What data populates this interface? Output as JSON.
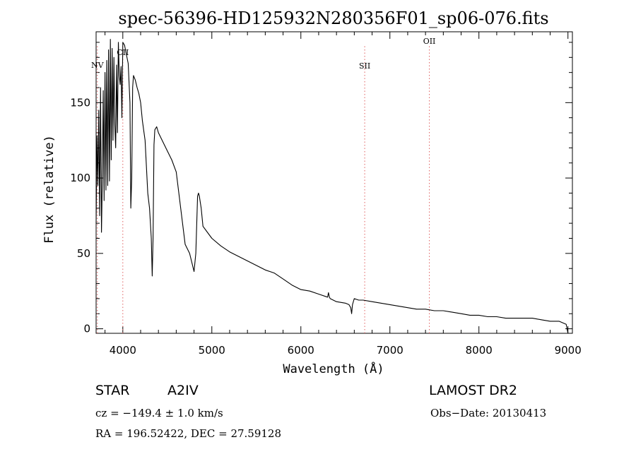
{
  "header": {
    "title": "spec-56396-HD125932N280356F01_sp06-076.fits"
  },
  "chart_data": {
    "type": "line",
    "title": "spec-56396-HD125932N280356F01_sp06-076.fits",
    "xlabel": "Wavelength (Å)",
    "ylabel": "Flux (relative)",
    "xlim": [
      3700,
      9050
    ],
    "ylim": [
      -3,
      197
    ],
    "x_ticks": [
      4000,
      5000,
      6000,
      7000,
      8000,
      9000
    ],
    "y_ticks": [
      0,
      50,
      100,
      150
    ],
    "x_tick_labels": [
      "4000",
      "5000",
      "6000",
      "7000",
      "8000",
      "9000"
    ],
    "y_tick_labels": [
      "0",
      "50",
      "100",
      "150"
    ],
    "grid": false,
    "series": [
      {
        "x": [
          3700,
          3710,
          3720,
          3730,
          3740,
          3750,
          3760,
          3770,
          3780,
          3790,
          3800,
          3810,
          3820,
          3830,
          3840,
          3850,
          3860,
          3870,
          3880,
          3890,
          3900,
          3910,
          3920,
          3930,
          3940,
          3950,
          3960,
          3970,
          3980,
          3990,
          4000,
          4020,
          4040,
          4060,
          4080,
          4090,
          4100,
          4110,
          4120,
          4140,
          4160,
          4180,
          4200,
          4220,
          4250,
          4280,
          4300,
          4320,
          4330,
          4340,
          4350,
          4360,
          4380,
          4400,
          4450,
          4500,
          4550,
          4600,
          4650,
          4700,
          4750,
          4800,
          4820,
          4840,
          4850,
          4860,
          4870,
          4880,
          4900,
          4950,
          5000,
          5100,
          5200,
          5300,
          5400,
          5500,
          5600,
          5700,
          5800,
          5900,
          6000,
          6100,
          6200,
          6300,
          6310,
          6320,
          6330,
          6400,
          6500,
          6540,
          6560,
          6570,
          6580,
          6600,
          6650,
          6700,
          6800,
          6900,
          7000,
          7100,
          7200,
          7300,
          7400,
          7500,
          7600,
          7700,
          7800,
          7900,
          8000,
          8100,
          8200,
          8300,
          8400,
          8500,
          8600,
          8700,
          8800,
          8900,
          8980,
          9000
        ],
        "y": [
          70,
          128,
          95,
          145,
          75,
          160,
          64,
          100,
          158,
          85,
          170,
          92,
          178,
          95,
          185,
          98,
          192,
          112,
          186,
          125,
          180,
          135,
          120,
          175,
          130,
          190,
          168,
          162,
          174,
          140,
          190,
          188,
          182,
          176,
          150,
          80,
          100,
          160,
          168,
          165,
          160,
          156,
          150,
          138,
          125,
          90,
          80,
          60,
          35,
          60,
          122,
          132,
          134,
          130,
          124,
          118,
          112,
          104,
          80,
          56,
          50,
          38,
          50,
          88,
          90,
          88,
          84,
          80,
          68,
          64,
          60,
          55,
          51,
          48,
          45,
          42,
          39,
          37,
          33,
          29,
          26,
          25,
          23,
          21,
          24,
          21,
          20,
          18,
          17,
          16,
          14,
          10,
          16,
          20,
          19,
          19,
          18,
          17,
          16,
          15,
          14,
          13,
          13,
          12,
          12,
          11,
          10,
          9,
          9,
          8,
          8,
          7,
          7,
          7,
          7,
          6,
          5,
          5,
          3,
          -3
        ]
      }
    ],
    "line_markers": [
      {
        "label": "NV",
        "wavelength": 3714
      },
      {
        "label": "CII",
        "wavelength": 4000
      },
      {
        "label": "SII",
        "wavelength": 6717
      },
      {
        "label": "OII",
        "wavelength": 7443
      }
    ]
  },
  "info": {
    "object_class": "STAR",
    "subclass": "A2IV",
    "cz": "cz = −149.4 ± 1.0 km/s",
    "coords": "RA = 196.52422, DEC =  27.59128",
    "survey": "LAMOST DR2",
    "obs_date": "Obs−Date: 20130413"
  },
  "colors": {
    "line_marker": "#e06060",
    "spectrum": "#000000",
    "axis": "#000000"
  }
}
